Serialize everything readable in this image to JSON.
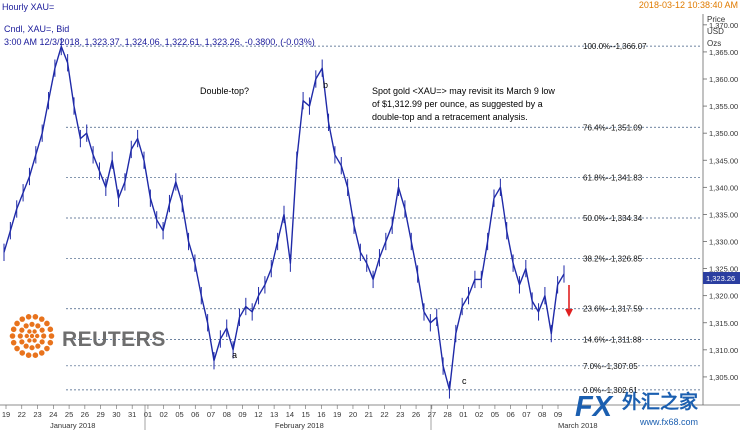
{
  "header": {
    "title": "Hourly XAU=",
    "timestamp": "2018-03-12 10:38:40 AM",
    "line1": "Cndl, XAU=, Bid",
    "line2": "3:00 AM 12/3/2018, 1,323.37, 1,324.06, 1,322.61, 1,323.26, -0.3800, (-0.03%)"
  },
  "axis_title": [
    "Price",
    "USD",
    "Ozs"
  ],
  "annotations": {
    "double_top": "Double-top?",
    "note": [
      "Spot gold <XAU=> may revisit its March 9 low",
      "of $1,312.99 per ounce, as suggested by a",
      "double-top and a retracement analysis."
    ],
    "point_a": "a",
    "point_b": "b",
    "point_c": "c"
  },
  "reuters_logo": "REUTERS",
  "watermark": {
    "fx": "FX",
    "cn": "外汇之家",
    "url": "www.fx68.com"
  },
  "colors": {
    "candle": "#1f2aa8",
    "fib_line": "#3d5a80",
    "arrow": "#e02020",
    "header_text": "#1a1a9a",
    "timestamp": "#e07b00",
    "logo_orange": "#e8731d",
    "last_price_tag": "#2b3ea0"
  },
  "chart_data": {
    "type": "line",
    "title": "Hourly XAU=",
    "ylabel": "Price USD Ozs",
    "ylim": [
      1300,
      1372
    ],
    "y_ticks": [
      1305,
      1310,
      1315,
      1320,
      1325,
      1330,
      1335,
      1340,
      1345,
      1350,
      1355,
      1360,
      1365,
      1370
    ],
    "y_tick_labels": [
      "1,305.00",
      "1,310.00",
      "1,315.00",
      "1,320.00",
      "1,325.00",
      "1,330.00",
      "1,335.00",
      "1,340.00",
      "1,345.00",
      "1,350.00",
      "1,355.00",
      "1,360.00",
      "1,365.00",
      "1,370.00"
    ],
    "last_price": 1323.26,
    "last_price_label": "1,323.26",
    "x_day_labels": [
      "19",
      "22",
      "23",
      "24",
      "25",
      "26",
      "29",
      "30",
      "31",
      "01",
      "02",
      "05",
      "06",
      "07",
      "08",
      "09",
      "12",
      "13",
      "14",
      "15",
      "16",
      "19",
      "20",
      "21",
      "22",
      "23",
      "26",
      "27",
      "28",
      "01",
      "02",
      "05",
      "06",
      "07",
      "08",
      "09"
    ],
    "month_labels": [
      "January 2018",
      "February 2018",
      "March 2018"
    ],
    "series": [
      {
        "values": [
          1328,
          1332,
          1336,
          1339,
          1342,
          1346,
          1350,
          1356,
          1362,
          1366,
          1363,
          1355,
          1349,
          1350,
          1346,
          1343,
          1340,
          1345,
          1338,
          1341,
          1347,
          1349,
          1345,
          1338,
          1334,
          1332,
          1337,
          1341,
          1337,
          1330,
          1326,
          1320,
          1315,
          1308,
          1312,
          1314,
          1310,
          1316,
          1318,
          1317,
          1320,
          1322,
          1325,
          1330,
          1335,
          1326,
          1345,
          1356,
          1355,
          1360,
          1362,
          1352,
          1346,
          1344,
          1340,
          1333,
          1328,
          1326,
          1323,
          1327,
          1330,
          1333,
          1340,
          1336,
          1330,
          1324,
          1317,
          1315,
          1316,
          1307,
          1302.6,
          1313,
          1318,
          1320,
          1323,
          1323,
          1330,
          1338,
          1340,
          1332,
          1326,
          1322,
          1325,
          1319,
          1317,
          1320,
          1313,
          1322,
          1324
        ]
      }
    ],
    "fib_levels": [
      {
        "label": "100.0%--1,366.07",
        "value": 1366.07
      },
      {
        "label": "76.4%--1,351.09",
        "value": 1351.09
      },
      {
        "label": "61.8%--1,341.83",
        "value": 1341.83
      },
      {
        "label": "50.0%--1,334.34",
        "value": 1334.34
      },
      {
        "label": "38.2%--1,326.85",
        "value": 1326.85
      },
      {
        "label": "23.6%--1,317.59",
        "value": 1317.59
      },
      {
        "label": "14.6%--1,311.88",
        "value": 1311.88
      },
      {
        "label": "7.0%--1,307.05",
        "value": 1307.05
      },
      {
        "label": "0.0%--1,302.61",
        "value": 1302.61
      }
    ]
  }
}
